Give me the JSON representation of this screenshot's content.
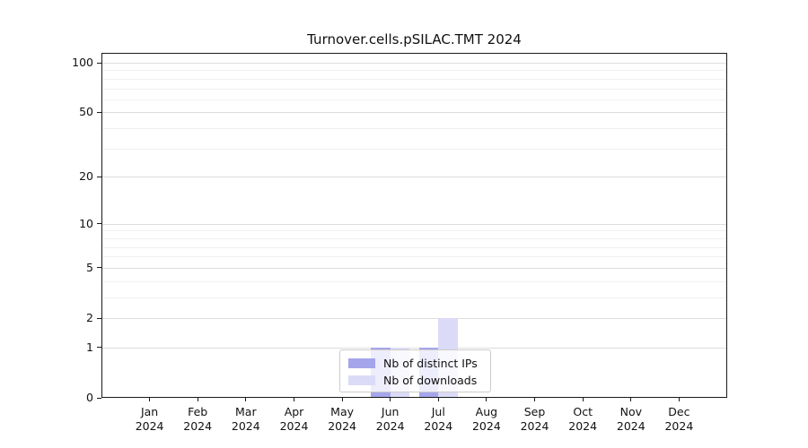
{
  "chart_data": {
    "type": "bar",
    "title": "Turnover.cells.pSILAC.TMT 2024",
    "categories": [
      "Jan 2024",
      "Feb 2024",
      "Mar 2024",
      "Apr 2024",
      "May 2024",
      "Jun 2024",
      "Jul 2024",
      "Aug 2024",
      "Sep 2024",
      "Oct 2024",
      "Nov 2024",
      "Dec 2024"
    ],
    "series": [
      {
        "name": "Nb of distinct IPs",
        "color": "#a5a5ec",
        "values": [
          0,
          0,
          0,
          0,
          0,
          1,
          1,
          0,
          0,
          0,
          0,
          0
        ]
      },
      {
        "name": "Nb of downloads",
        "color": "#dbdbf7",
        "values": [
          0,
          0,
          0,
          0,
          0,
          1,
          2,
          0,
          0,
          0,
          0,
          0
        ]
      }
    ],
    "xlabel": "",
    "ylabel": "",
    "yscale": "log10(1+x)",
    "yticks": [
      0,
      1,
      2,
      5,
      10,
      20,
      50,
      100
    ],
    "minor_yticks": [
      3,
      4,
      6,
      7,
      8,
      9,
      30,
      40,
      60,
      70,
      80,
      90
    ],
    "ylim": [
      0,
      113
    ],
    "grid": true,
    "legend_position": "lower center, inside plot"
  }
}
